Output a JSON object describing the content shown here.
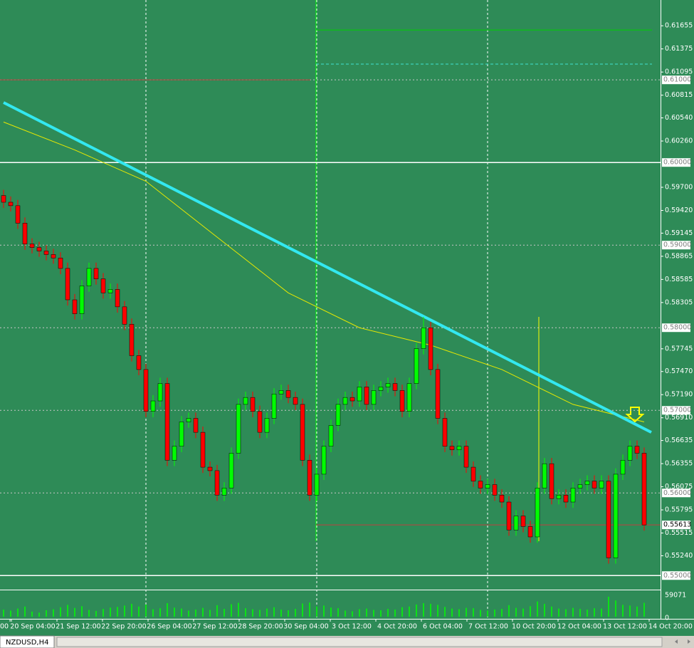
{
  "chart_data": {
    "type": "candlestick",
    "symbol": "NZDUSD,H4",
    "up_color": "#00ff00",
    "down_color": "#ff0000",
    "open": [
      0.596,
      0.59519,
      0.59477,
      0.59266,
      0.59013,
      0.58971,
      0.58929,
      0.58886,
      0.58844,
      0.58718,
      0.58338,
      0.58169,
      0.58506,
      0.58718,
      0.58591,
      0.58422,
      0.58464,
      0.58253,
      0.58042,
      0.57662,
      0.57494,
      0.56987,
      0.57114,
      0.57325,
      0.56396,
      0.56565,
      0.5686,
      0.56903,
      0.56734,
      0.56312,
      0.5627,
      0.55974,
      0.5606,
      0.56481,
      0.57072,
      0.57156,
      0.56987,
      0.56734,
      0.56903,
      0.57198,
      0.5724,
      0.57156,
      0.57072,
      0.56396,
      0.55974,
      0.56227,
      0.56565,
      0.56818,
      0.57072,
      0.57156,
      0.57114,
      0.57283,
      0.57072,
      0.5724,
      0.57283,
      0.57325,
      0.5724,
      0.56987,
      0.57325,
      0.57747,
      0.58,
      0.57494,
      0.56903,
      0.56565,
      0.56523,
      0.56565,
      0.56312,
      0.56143,
      0.56059,
      0.56101,
      0.55974,
      0.5589,
      0.55552,
      0.55721,
      0.55594,
      0.55468,
      0.56059,
      0.56354,
      0.55932,
      0.55974,
      0.5589,
      0.56059,
      0.56101,
      0.56143,
      0.56059,
      0.56143,
      0.55215,
      0.56227,
      0.56396,
      0.56565,
      0.56481
    ],
    "high": [
      0.5967,
      0.59589,
      0.59547,
      0.59336,
      0.59083,
      0.59041,
      0.58999,
      0.58956,
      0.58914,
      0.58788,
      0.58408,
      0.58576,
      0.58788,
      0.58788,
      0.58661,
      0.58534,
      0.58534,
      0.58323,
      0.58112,
      0.57732,
      0.57564,
      0.57184,
      0.57395,
      0.57395,
      0.56635,
      0.5693,
      0.56973,
      0.56973,
      0.56804,
      0.56382,
      0.5634,
      0.5613,
      0.56551,
      0.57142,
      0.57226,
      0.57226,
      0.57057,
      0.56973,
      0.57268,
      0.5731,
      0.5731,
      0.57226,
      0.57142,
      0.56466,
      0.56297,
      0.56635,
      0.56888,
      0.57142,
      0.57226,
      0.57226,
      0.57353,
      0.57353,
      0.5731,
      0.57353,
      0.57395,
      0.57395,
      0.5731,
      0.57395,
      0.57817,
      0.5813,
      0.5807,
      0.57564,
      0.56973,
      0.56635,
      0.56635,
      0.56635,
      0.56382,
      0.56213,
      0.56171,
      0.56171,
      0.56044,
      0.5596,
      0.55791,
      0.55791,
      0.55664,
      0.56129,
      0.56424,
      0.56424,
      0.56044,
      0.56044,
      0.56129,
      0.56171,
      0.56213,
      0.56213,
      0.56213,
      0.56213,
      0.56297,
      0.56466,
      0.56635,
      0.56635,
      0.56551
    ],
    "low": [
      0.59449,
      0.59407,
      0.59196,
      0.58943,
      0.58901,
      0.58859,
      0.58816,
      0.58774,
      0.58648,
      0.58268,
      0.58099,
      0.58099,
      0.58436,
      0.58521,
      0.58352,
      0.58352,
      0.58183,
      0.57972,
      0.57592,
      0.57424,
      0.56917,
      0.56917,
      0.57044,
      0.56326,
      0.56326,
      0.56495,
      0.5679,
      0.56664,
      0.56242,
      0.562,
      0.55904,
      0.55904,
      0.5599,
      0.56411,
      0.57002,
      0.56917,
      0.56664,
      0.56664,
      0.56833,
      0.57128,
      0.57086,
      0.57002,
      0.56326,
      0.55904,
      0.55904,
      0.56157,
      0.56495,
      0.56748,
      0.57002,
      0.57044,
      0.57044,
      0.57002,
      0.57002,
      0.5717,
      0.57213,
      0.5717,
      0.56917,
      0.56917,
      0.57255,
      0.57677,
      0.57424,
      0.56833,
      0.56495,
      0.56453,
      0.56453,
      0.56242,
      0.56073,
      0.55989,
      0.55989,
      0.55904,
      0.5582,
      0.55482,
      0.55482,
      0.55524,
      0.55398,
      0.55398,
      0.55989,
      0.55862,
      0.55862,
      0.5582,
      0.5582,
      0.55989,
      0.56031,
      0.55989,
      0.55989,
      0.55145,
      0.55145,
      0.56157,
      0.56326,
      0.56411,
      0.55543
    ],
    "close": [
      0.59519,
      0.59477,
      0.59266,
      0.59013,
      0.58971,
      0.58929,
      0.58886,
      0.58844,
      0.58718,
      0.58338,
      0.58169,
      0.58506,
      0.58718,
      0.58591,
      0.58422,
      0.58464,
      0.58253,
      0.58042,
      0.57662,
      0.57494,
      0.56987,
      0.57114,
      0.57325,
      0.56396,
      0.56565,
      0.5686,
      0.56903,
      0.56734,
      0.56312,
      0.5627,
      0.55974,
      0.5606,
      0.56481,
      0.57072,
      0.57156,
      0.56987,
      0.56734,
      0.56903,
      0.57198,
      0.5724,
      0.57156,
      0.57072,
      0.56396,
      0.55974,
      0.56227,
      0.56565,
      0.56818,
      0.57072,
      0.57156,
      0.57114,
      0.57283,
      0.57072,
      0.5724,
      0.57283,
      0.57325,
      0.5724,
      0.56987,
      0.57325,
      0.57747,
      0.58,
      0.57494,
      0.56903,
      0.56565,
      0.56523,
      0.56565,
      0.56312,
      0.56143,
      0.56059,
      0.56101,
      0.55974,
      0.5589,
      0.55552,
      0.55721,
      0.55594,
      0.55468,
      0.56059,
      0.56354,
      0.55932,
      0.55974,
      0.5589,
      0.56059,
      0.56101,
      0.56143,
      0.56059,
      0.56143,
      0.55215,
      0.56227,
      0.56396,
      0.56565,
      0.56481,
      0.55613
    ],
    "volume": [
      21000,
      18000,
      24000,
      30000,
      15000,
      12000,
      19000,
      22000,
      28000,
      35000,
      26000,
      31000,
      20000,
      17000,
      23000,
      27000,
      29000,
      33000,
      38000,
      30000,
      36000,
      22000,
      25000,
      40000,
      27000,
      24000,
      18000,
      21000,
      26000,
      20000,
      34000,
      23000,
      37000,
      41000,
      25000,
      22000,
      20000,
      24000,
      28000,
      21000,
      19000,
      23000,
      39000,
      42000,
      30000,
      33000,
      27000,
      25000,
      18000,
      16000,
      22000,
      24000,
      20000,
      19000,
      23000,
      21000,
      28000,
      30000,
      36000,
      40000,
      38000,
      35000,
      29000,
      24000,
      22000,
      26000,
      25000,
      20000,
      18000,
      21000,
      23000,
      34000,
      26000,
      24000,
      31000,
      45000,
      38000,
      30000,
      24000,
      22000,
      26000,
      23000,
      21000,
      25000,
      24000,
      59071,
      48000,
      35000,
      33000,
      30000,
      41000
    ],
    "ma": {
      "x": [
        0,
        10,
        20,
        30,
        40,
        50,
        60,
        70,
        80,
        90
      ],
      "values": [
        0.6049,
        0.60152,
        0.59773,
        0.59097,
        0.58422,
        0.58,
        0.57789,
        0.57494,
        0.57072,
        0.5686
      ],
      "color": "#e8e800"
    },
    "trendline": {
      "x": [
        0,
        91
      ],
      "values": [
        0.60726,
        0.56734
      ],
      "color": "#33e8f0"
    },
    "levels": [
      {
        "value": 0.61604,
        "color": "#00d000"
      },
      {
        "value": 0.61191,
        "color": "#40e0d0"
      },
      {
        "value": 0.61,
        "color": "#c04040"
      },
      {
        "value": 0.55613,
        "color": "#c04040"
      }
    ],
    "ylim": [
      0.5483,
      0.61967
    ],
    "yticks": [
      {
        "value": 0.61655,
        "label": "0.61655"
      },
      {
        "value": 0.61375,
        "label": "0.61375"
      },
      {
        "value": 0.61095,
        "label": "0.61095"
      },
      {
        "value": 0.60815,
        "label": "0.60815"
      },
      {
        "value": 0.6054,
        "label": "0.60540"
      },
      {
        "value": 0.6026,
        "label": "0.60260"
      },
      {
        "value": 0.597,
        "label": "0.59700"
      },
      {
        "value": 0.5942,
        "label": "0.59420"
      },
      {
        "value": 0.59145,
        "label": "0.59145"
      },
      {
        "value": 0.58865,
        "label": "0.58865"
      },
      {
        "value": 0.58585,
        "label": "0.58585"
      },
      {
        "value": 0.58305,
        "label": "0.58305"
      },
      {
        "value": 0.57745,
        "label": "0.57745"
      },
      {
        "value": 0.5747,
        "label": "0.57470"
      },
      {
        "value": 0.5719,
        "label": "0.57190"
      },
      {
        "value": 0.5691,
        "label": "0.56910"
      },
      {
        "value": 0.56635,
        "label": "0.56635"
      },
      {
        "value": 0.56355,
        "label": "0.56355"
      },
      {
        "value": 0.56075,
        "label": "0.56075"
      },
      {
        "value": 0.55795,
        "label": "0.55795"
      },
      {
        "value": 0.55515,
        "label": "0.55515"
      },
      {
        "value": 0.5524,
        "label": "0.55240"
      }
    ],
    "level_ticks": [
      {
        "value": 0.61,
        "label": "0.61000"
      },
      {
        "value": 0.6,
        "label": "0.60000"
      },
      {
        "value": 0.59,
        "label": "0.59000"
      },
      {
        "value": 0.58,
        "label": "0.58000"
      },
      {
        "value": 0.57,
        "label": "0.57000"
      },
      {
        "value": 0.56,
        "label": "0.56000"
      },
      {
        "value": 0.55,
        "label": "0.55000"
      }
    ],
    "last_price": {
      "value": 0.55613,
      "label": "0.55613"
    },
    "volume_ylim": [
      0,
      59071
    ],
    "volume_ticks": [
      59071,
      0
    ],
    "x_labels": [
      "00",
      "20 Sep 04:00",
      "21 Sep 12:00",
      "22 Sep 20:00",
      "26 Sep 04:00",
      "27 Sep 12:00",
      "28 Sep 20:00",
      "30 Sep 04:00",
      "3 Oct 12:00",
      "4 Oct 20:00",
      "6 Oct 04:00",
      "7 Oct 12:00",
      "10 Oct 20:00",
      "12 Oct 04:00",
      "13 Oct 12:00",
      "14 Oct 20:00"
    ]
  }
}
